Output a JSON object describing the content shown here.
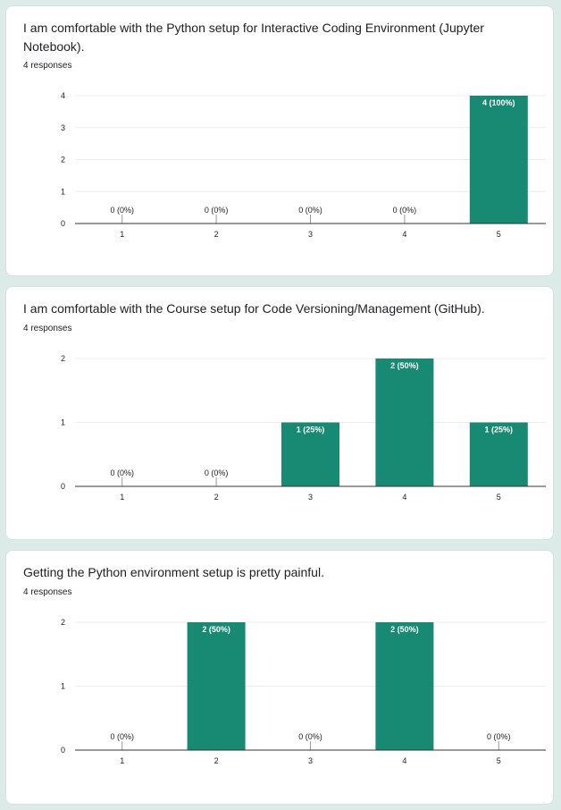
{
  "charts": [
    {
      "title": "I am comfortable with the Python setup for Interactive Coding Environment (Jupyter Notebook).",
      "responses": "4 responses"
    },
    {
      "title": "I am comfortable with the Course setup for Code Versioning/Management (GitHub).",
      "responses": "4 responses"
    },
    {
      "title": "Getting the Python environment setup is pretty painful.",
      "responses": "4 responses"
    }
  ],
  "chart_data": [
    {
      "type": "bar",
      "title": "I am comfortable with the Python setup for Interactive Coding Environment (Jupyter Notebook).",
      "categories": [
        "1",
        "2",
        "3",
        "4",
        "5"
      ],
      "values": [
        0,
        0,
        0,
        0,
        4
      ],
      "data_labels": [
        "0 (0%)",
        "0 (0%)",
        "0 (0%)",
        "0 (0%)",
        "4 (100%)"
      ],
      "ylim": [
        0,
        4
      ],
      "yticks": [
        0,
        1,
        2,
        3,
        4
      ],
      "grid": true,
      "color": "#188a74"
    },
    {
      "type": "bar",
      "title": "I am comfortable with the Course setup for Code Versioning/Management (GitHub).",
      "categories": [
        "1",
        "2",
        "3",
        "4",
        "5"
      ],
      "values": [
        0,
        0,
        1,
        2,
        1
      ],
      "data_labels": [
        "0 (0%)",
        "0 (0%)",
        "1 (25%)",
        "2 (50%)",
        "1 (25%)"
      ],
      "ylim": [
        0,
        2
      ],
      "yticks": [
        0,
        1,
        2
      ],
      "grid": true,
      "color": "#188a74"
    },
    {
      "type": "bar",
      "title": "Getting the Python environment setup is pretty painful.",
      "categories": [
        "1",
        "2",
        "3",
        "4",
        "5"
      ],
      "values": [
        0,
        2,
        0,
        2,
        0
      ],
      "data_labels": [
        "0 (0%)",
        "2 (50%)",
        "0 (0%)",
        "2 (50%)",
        "0 (0%)"
      ],
      "ylim": [
        0,
        2
      ],
      "yticks": [
        0,
        1,
        2
      ],
      "grid": true,
      "color": "#188a74"
    }
  ]
}
